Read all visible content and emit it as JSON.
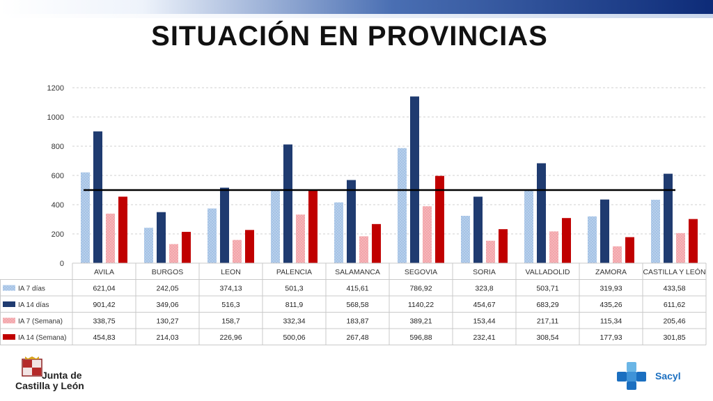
{
  "slide": {
    "title": "SITUACIÓN EN PROVINCIAS"
  },
  "logos": {
    "junta_line1": "Junta de",
    "junta_line2": "Castilla y León",
    "sacyl": "Sacyl"
  },
  "colors": {
    "ia7d": "#a9c6e8",
    "ia14d": "#1f3b70",
    "ia7s": "#f2a4a8",
    "ia14s": "#c00000",
    "threshold": "#000000"
  },
  "chart_data": {
    "type": "bar",
    "title": "SITUACIÓN EN PROVINCIAS",
    "categories": [
      "AVILA",
      "BURGOS",
      "LEON",
      "PALENCIA",
      "SALAMANCA",
      "SEGOVIA",
      "SORIA",
      "VALLADOLID",
      "ZAMORA",
      "CASTILLA Y LEÓN"
    ],
    "series": [
      {
        "name": "IA 7 días",
        "values": [
          621.04,
          242.05,
          374.13,
          501.3,
          415.61,
          786.92,
          323.8,
          503.71,
          319.93,
          433.58
        ],
        "labels": [
          "621,04",
          "242,05",
          "374,13",
          "501,3",
          "415,61",
          "786,92",
          "323,8",
          "503,71",
          "319,93",
          "433,58"
        ]
      },
      {
        "name": "IA 14 días",
        "values": [
          901.42,
          349.06,
          516.3,
          811.9,
          568.58,
          1140.22,
          454.67,
          683.29,
          435.26,
          611.62
        ],
        "labels": [
          "901,42",
          "349,06",
          "516,3",
          "811,9",
          "568,58",
          "1140,22",
          "454,67",
          "683,29",
          "435,26",
          "611,62"
        ]
      },
      {
        "name": "IA 7 (Semana)",
        "values": [
          338.75,
          130.27,
          158.7,
          332.34,
          183.87,
          389.21,
          153.44,
          217.11,
          115.34,
          205.46
        ],
        "labels": [
          "338,75",
          "130,27",
          "158,7",
          "332,34",
          "183,87",
          "389,21",
          "153,44",
          "217,11",
          "115,34",
          "205,46"
        ]
      },
      {
        "name": "IA 14 (Semana)",
        "values": [
          454.83,
          214.03,
          226.96,
          500.06,
          267.48,
          596.88,
          232.41,
          308.54,
          177.93,
          301.85
        ],
        "labels": [
          "454,83",
          "214,03",
          "226,96",
          "500,06",
          "267,48",
          "596,88",
          "232,41",
          "308,54",
          "177,93",
          "301,85"
        ]
      }
    ],
    "threshold": 500,
    "ylim": [
      0,
      1200
    ],
    "yticks": [
      0,
      200,
      400,
      600,
      800,
      1000,
      1200
    ],
    "grid": true,
    "legend": "data-table"
  }
}
